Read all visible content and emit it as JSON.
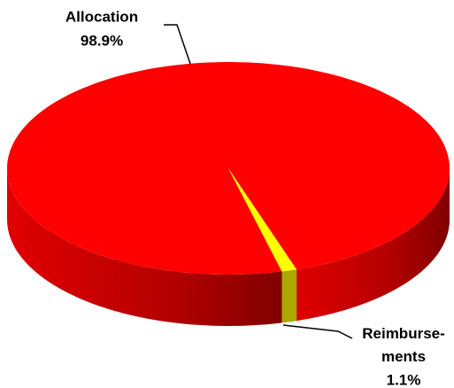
{
  "chart_data": {
    "type": "pie",
    "categories": [
      "Allocation",
      "Reimburse-ments"
    ],
    "values": [
      98.9,
      1.1
    ],
    "value_labels": [
      "98.9%",
      "1.1%"
    ],
    "colors": [
      "#ff0000",
      "#ffff00"
    ]
  }
}
